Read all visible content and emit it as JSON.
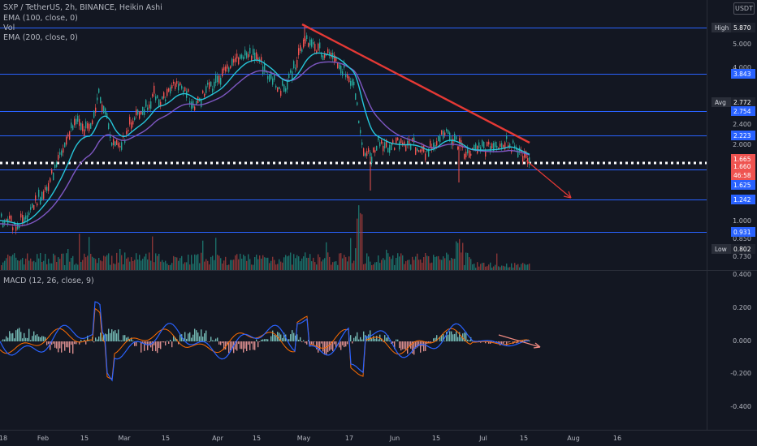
{
  "legend": {
    "symbol": "SXP / TetherUS, 2h, BINANCE, Heikin Ashi",
    "ema100": "EMA (100, close, 0)",
    "volume": "Vol",
    "ema200": "EMA (200, close, 0)",
    "macd": "MACD (12, 26, close, 9)"
  },
  "corner_badge": "USDT",
  "price_axis": {
    "ticks": [
      "5.000",
      "4.000",
      "2.400",
      "2.000",
      "1.000",
      "0.850",
      "0.730"
    ],
    "labels": [
      {
        "title": "High",
        "value": "5.870"
      },
      {
        "title": "",
        "value": "3.843"
      },
      {
        "title": "Avg",
        "value": "2.772"
      },
      {
        "title": "",
        "value": "2.754"
      },
      {
        "title": "",
        "value": "2.223"
      },
      {
        "title": "",
        "value": "1.665"
      },
      {
        "title": "",
        "value": "1.660"
      },
      {
        "title": "",
        "value": "46:58"
      },
      {
        "title": "",
        "value": "1.625"
      },
      {
        "title": "",
        "value": "1.242"
      },
      {
        "title": "",
        "value": "0.931"
      },
      {
        "title": "Low",
        "value": "0.802"
      }
    ]
  },
  "macd_axis": {
    "ticks": [
      "0.400",
      "0.200",
      "0.000",
      "-0.200",
      "-0.400"
    ]
  },
  "time_axis": {
    "ticks": [
      "18",
      "Feb",
      "15",
      "Mar",
      "15",
      "Apr",
      "15",
      "May",
      "17",
      "Jun",
      "15",
      "Jul",
      "15",
      "Aug",
      "16"
    ]
  },
  "colors": {
    "background": "#131722",
    "up": "#26a69a",
    "down": "#ef5350",
    "ema_fast": "#26c6da",
    "ema_slow": "#7e57c2",
    "level_line": "#2962ff",
    "trendline": "#e53935",
    "macd_line": "#2962ff",
    "signal_line": "#ff6d00"
  }
}
